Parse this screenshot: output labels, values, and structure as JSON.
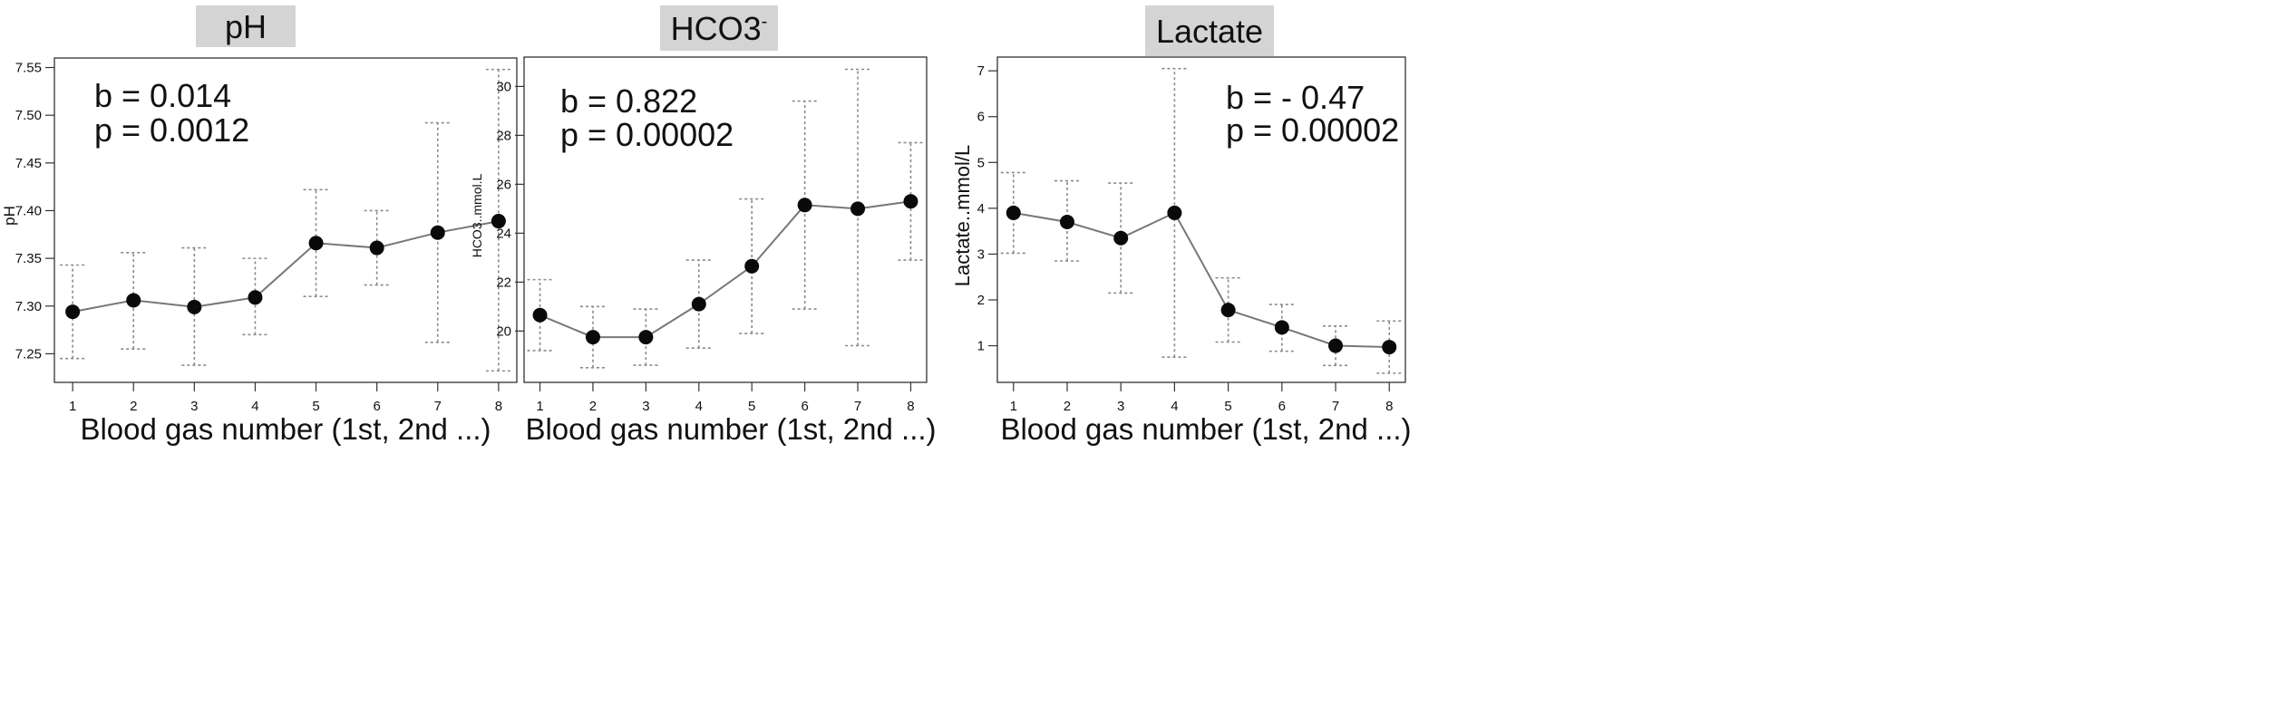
{
  "chart_data": [
    {
      "type": "line",
      "title": "pH",
      "title_sup": "",
      "xlabel": "Blood gas number (1st, 2nd ...)",
      "ylabel": "pH",
      "x": [
        1,
        2,
        3,
        4,
        5,
        6,
        7,
        8
      ],
      "y": [
        7.294,
        7.306,
        7.299,
        7.309,
        7.366,
        7.361,
        7.377,
        7.389
      ],
      "err_low": [
        7.245,
        7.255,
        7.238,
        7.27,
        7.31,
        7.322,
        7.262,
        7.232
      ],
      "err_high": [
        7.343,
        7.356,
        7.361,
        7.35,
        7.422,
        7.4,
        7.492,
        7.548
      ],
      "yticks": [
        7.25,
        7.3,
        7.35,
        7.4,
        7.45,
        7.5,
        7.55
      ],
      "ytick_labels": [
        "7.25",
        "7.30",
        "7.35",
        "7.40",
        "7.45",
        "7.50",
        "7.55"
      ],
      "ylim": [
        7.22,
        7.56
      ],
      "xlim": [
        0.7,
        8.3
      ],
      "annotation": [
        "b = 0.014",
        "p = 0.0012"
      ],
      "annotation_pos": "top-left",
      "grid": false
    },
    {
      "type": "line",
      "title": "HCO3",
      "title_sup": "-",
      "xlabel": "Blood gas number (1st, 2nd ...)",
      "ylabel": "HCO3..mmol.L",
      "x": [
        1,
        2,
        3,
        4,
        5,
        6,
        7,
        8
      ],
      "y": [
        20.65,
        19.75,
        19.75,
        21.1,
        22.65,
        25.15,
        25.0,
        25.3
      ],
      "err_low": [
        19.2,
        18.5,
        18.6,
        19.3,
        19.9,
        20.9,
        19.4,
        22.9
      ],
      "err_high": [
        22.1,
        21.0,
        20.9,
        22.9,
        25.4,
        29.4,
        30.7,
        27.7
      ],
      "yticks": [
        20,
        22,
        24,
        26,
        28,
        30
      ],
      "ytick_labels": [
        "20",
        "22",
        "24",
        "26",
        "28",
        "30"
      ],
      "ylim": [
        17.9,
        31.2
      ],
      "xlim": [
        0.7,
        8.3
      ],
      "annotation": [
        "b = 0.822",
        "p = 0.00002"
      ],
      "annotation_pos": "top-left",
      "grid": false
    },
    {
      "type": "line",
      "title": "Lactate",
      "title_sup": "",
      "xlabel": "Blood gas number (1st, 2nd ...)",
      "ylabel": "Lactate..mmol/L",
      "x": [
        1,
        2,
        3,
        4,
        5,
        6,
        7,
        8
      ],
      "y": [
        3.9,
        3.7,
        3.35,
        3.9,
        1.78,
        1.4,
        1.0,
        0.97
      ],
      "err_low": [
        3.02,
        2.85,
        2.15,
        0.75,
        1.08,
        0.88,
        0.57,
        0.4
      ],
      "err_high": [
        4.78,
        4.6,
        4.55,
        7.05,
        2.48,
        1.9,
        1.43,
        1.54
      ],
      "yticks": [
        1,
        2,
        3,
        4,
        5,
        6,
        7
      ],
      "ytick_labels": [
        "1",
        "2",
        "3",
        "4",
        "5",
        "6",
        "7"
      ],
      "ylim": [
        0.2,
        7.3
      ],
      "xlim": [
        0.7,
        8.3
      ],
      "annotation": [
        "b = - 0.47",
        "p = 0.00002"
      ],
      "annotation_pos": "top-right",
      "grid": false
    }
  ]
}
